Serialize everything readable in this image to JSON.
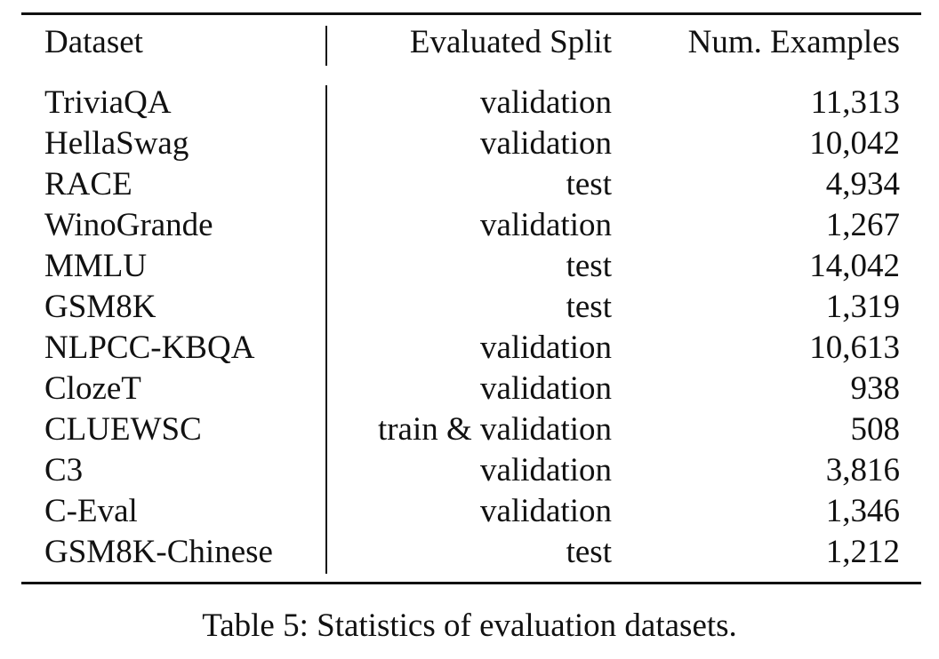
{
  "table": {
    "headers": [
      "Dataset",
      "Evaluated Split",
      "Num. Examples"
    ],
    "rows": [
      [
        "TriviaQA",
        "validation",
        "11,313"
      ],
      [
        "HellaSwag",
        "validation",
        "10,042"
      ],
      [
        "RACE",
        "test",
        "4,934"
      ],
      [
        "WinoGrande",
        "validation",
        "1,267"
      ],
      [
        "MMLU",
        "test",
        "14,042"
      ],
      [
        "GSM8K",
        "test",
        "1,319"
      ],
      [
        "NLPCC-KBQA",
        "validation",
        "10,613"
      ],
      [
        "ClozeT",
        "validation",
        "938"
      ],
      [
        "CLUEWSC",
        "train & validation",
        "508"
      ],
      [
        "C3",
        "validation",
        "3,816"
      ],
      [
        "C-Eval",
        "validation",
        "1,346"
      ],
      [
        "GSM8K-Chinese",
        "test",
        "1,212"
      ]
    ]
  },
  "caption": "Table 5: Statistics of evaluation datasets."
}
